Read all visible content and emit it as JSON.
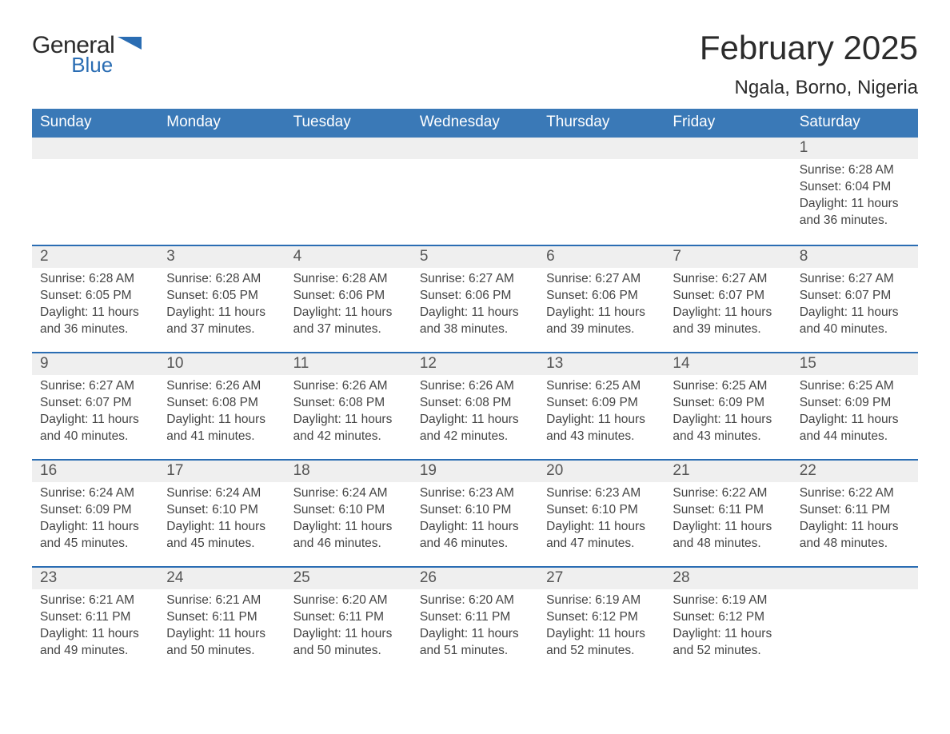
{
  "brand": {
    "name_part1": "General",
    "name_part2": "Blue"
  },
  "title": {
    "month_year": "February 2025",
    "location": "Ngala, Borno, Nigeria"
  },
  "colors": {
    "header_blue": "#3a79b7",
    "accent_blue": "#2a6db3",
    "row_grey": "#efefef",
    "background": "#ffffff"
  },
  "day_names": [
    "Sunday",
    "Monday",
    "Tuesday",
    "Wednesday",
    "Thursday",
    "Friday",
    "Saturday"
  ],
  "weeks": [
    [
      null,
      null,
      null,
      null,
      null,
      null,
      {
        "day": "1",
        "sunrise": "Sunrise: 6:28 AM",
        "sunset": "Sunset: 6:04 PM",
        "daylight1": "Daylight: 11 hours",
        "daylight2": "and 36 minutes."
      }
    ],
    [
      {
        "day": "2",
        "sunrise": "Sunrise: 6:28 AM",
        "sunset": "Sunset: 6:05 PM",
        "daylight1": "Daylight: 11 hours",
        "daylight2": "and 36 minutes."
      },
      {
        "day": "3",
        "sunrise": "Sunrise: 6:28 AM",
        "sunset": "Sunset: 6:05 PM",
        "daylight1": "Daylight: 11 hours",
        "daylight2": "and 37 minutes."
      },
      {
        "day": "4",
        "sunrise": "Sunrise: 6:28 AM",
        "sunset": "Sunset: 6:06 PM",
        "daylight1": "Daylight: 11 hours",
        "daylight2": "and 37 minutes."
      },
      {
        "day": "5",
        "sunrise": "Sunrise: 6:27 AM",
        "sunset": "Sunset: 6:06 PM",
        "daylight1": "Daylight: 11 hours",
        "daylight2": "and 38 minutes."
      },
      {
        "day": "6",
        "sunrise": "Sunrise: 6:27 AM",
        "sunset": "Sunset: 6:06 PM",
        "daylight1": "Daylight: 11 hours",
        "daylight2": "and 39 minutes."
      },
      {
        "day": "7",
        "sunrise": "Sunrise: 6:27 AM",
        "sunset": "Sunset: 6:07 PM",
        "daylight1": "Daylight: 11 hours",
        "daylight2": "and 39 minutes."
      },
      {
        "day": "8",
        "sunrise": "Sunrise: 6:27 AM",
        "sunset": "Sunset: 6:07 PM",
        "daylight1": "Daylight: 11 hours",
        "daylight2": "and 40 minutes."
      }
    ],
    [
      {
        "day": "9",
        "sunrise": "Sunrise: 6:27 AM",
        "sunset": "Sunset: 6:07 PM",
        "daylight1": "Daylight: 11 hours",
        "daylight2": "and 40 minutes."
      },
      {
        "day": "10",
        "sunrise": "Sunrise: 6:26 AM",
        "sunset": "Sunset: 6:08 PM",
        "daylight1": "Daylight: 11 hours",
        "daylight2": "and 41 minutes."
      },
      {
        "day": "11",
        "sunrise": "Sunrise: 6:26 AM",
        "sunset": "Sunset: 6:08 PM",
        "daylight1": "Daylight: 11 hours",
        "daylight2": "and 42 minutes."
      },
      {
        "day": "12",
        "sunrise": "Sunrise: 6:26 AM",
        "sunset": "Sunset: 6:08 PM",
        "daylight1": "Daylight: 11 hours",
        "daylight2": "and 42 minutes."
      },
      {
        "day": "13",
        "sunrise": "Sunrise: 6:25 AM",
        "sunset": "Sunset: 6:09 PM",
        "daylight1": "Daylight: 11 hours",
        "daylight2": "and 43 minutes."
      },
      {
        "day": "14",
        "sunrise": "Sunrise: 6:25 AM",
        "sunset": "Sunset: 6:09 PM",
        "daylight1": "Daylight: 11 hours",
        "daylight2": "and 43 minutes."
      },
      {
        "day": "15",
        "sunrise": "Sunrise: 6:25 AM",
        "sunset": "Sunset: 6:09 PM",
        "daylight1": "Daylight: 11 hours",
        "daylight2": "and 44 minutes."
      }
    ],
    [
      {
        "day": "16",
        "sunrise": "Sunrise: 6:24 AM",
        "sunset": "Sunset: 6:09 PM",
        "daylight1": "Daylight: 11 hours",
        "daylight2": "and 45 minutes."
      },
      {
        "day": "17",
        "sunrise": "Sunrise: 6:24 AM",
        "sunset": "Sunset: 6:10 PM",
        "daylight1": "Daylight: 11 hours",
        "daylight2": "and 45 minutes."
      },
      {
        "day": "18",
        "sunrise": "Sunrise: 6:24 AM",
        "sunset": "Sunset: 6:10 PM",
        "daylight1": "Daylight: 11 hours",
        "daylight2": "and 46 minutes."
      },
      {
        "day": "19",
        "sunrise": "Sunrise: 6:23 AM",
        "sunset": "Sunset: 6:10 PM",
        "daylight1": "Daylight: 11 hours",
        "daylight2": "and 46 minutes."
      },
      {
        "day": "20",
        "sunrise": "Sunrise: 6:23 AM",
        "sunset": "Sunset: 6:10 PM",
        "daylight1": "Daylight: 11 hours",
        "daylight2": "and 47 minutes."
      },
      {
        "day": "21",
        "sunrise": "Sunrise: 6:22 AM",
        "sunset": "Sunset: 6:11 PM",
        "daylight1": "Daylight: 11 hours",
        "daylight2": "and 48 minutes."
      },
      {
        "day": "22",
        "sunrise": "Sunrise: 6:22 AM",
        "sunset": "Sunset: 6:11 PM",
        "daylight1": "Daylight: 11 hours",
        "daylight2": "and 48 minutes."
      }
    ],
    [
      {
        "day": "23",
        "sunrise": "Sunrise: 6:21 AM",
        "sunset": "Sunset: 6:11 PM",
        "daylight1": "Daylight: 11 hours",
        "daylight2": "and 49 minutes."
      },
      {
        "day": "24",
        "sunrise": "Sunrise: 6:21 AM",
        "sunset": "Sunset: 6:11 PM",
        "daylight1": "Daylight: 11 hours",
        "daylight2": "and 50 minutes."
      },
      {
        "day": "25",
        "sunrise": "Sunrise: 6:20 AM",
        "sunset": "Sunset: 6:11 PM",
        "daylight1": "Daylight: 11 hours",
        "daylight2": "and 50 minutes."
      },
      {
        "day": "26",
        "sunrise": "Sunrise: 6:20 AM",
        "sunset": "Sunset: 6:11 PM",
        "daylight1": "Daylight: 11 hours",
        "daylight2": "and 51 minutes."
      },
      {
        "day": "27",
        "sunrise": "Sunrise: 6:19 AM",
        "sunset": "Sunset: 6:12 PM",
        "daylight1": "Daylight: 11 hours",
        "daylight2": "and 52 minutes."
      },
      {
        "day": "28",
        "sunrise": "Sunrise: 6:19 AM",
        "sunset": "Sunset: 6:12 PM",
        "daylight1": "Daylight: 11 hours",
        "daylight2": "and 52 minutes."
      },
      null
    ]
  ]
}
